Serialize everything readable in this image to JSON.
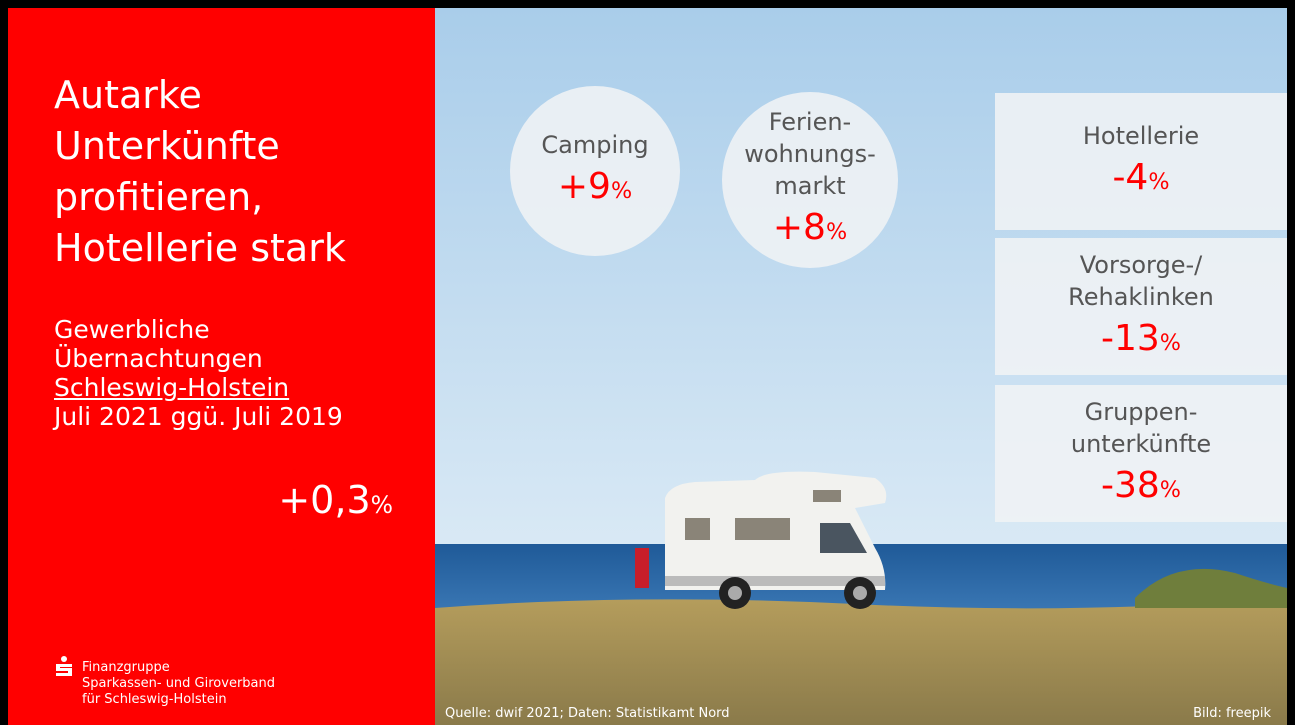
{
  "left": {
    "title_lines": [
      "Autarke",
      "Unterkünfte",
      "profitieren,",
      "Hotellerie stark"
    ],
    "subtitle_lines": [
      "Gewerbliche",
      "Übernachtungen",
      "Schleswig-Holstein",
      "Juli 2021 ggü. Juli 2019"
    ],
    "total": {
      "value": "+0,3",
      "unit": "%"
    },
    "logo_lines": [
      "Finanzgruppe",
      "Sparkassen- und Giroverband",
      "für Schleswig-Holstein"
    ]
  },
  "circles": [
    {
      "label_lines": [
        "Camping"
      ],
      "value": "+9",
      "unit": "%"
    },
    {
      "label_lines": [
        "Ferien-",
        "wohnungs-",
        "markt"
      ],
      "value": "+8",
      "unit": "%"
    }
  ],
  "boxes": [
    {
      "label_lines": [
        "Hotellerie"
      ],
      "value": "-4",
      "unit": "%"
    },
    {
      "label_lines": [
        "Vorsorge-/",
        "Rehaklinken"
      ],
      "value": "-13",
      "unit": "%"
    },
    {
      "label_lines": [
        "Gruppen-",
        "unterkünfte"
      ],
      "value": "-38",
      "unit": "%"
    }
  ],
  "source": "Quelle: dwif 2021; Daten: Statistikamt Nord",
  "image_credit": "Bild: freepik"
}
